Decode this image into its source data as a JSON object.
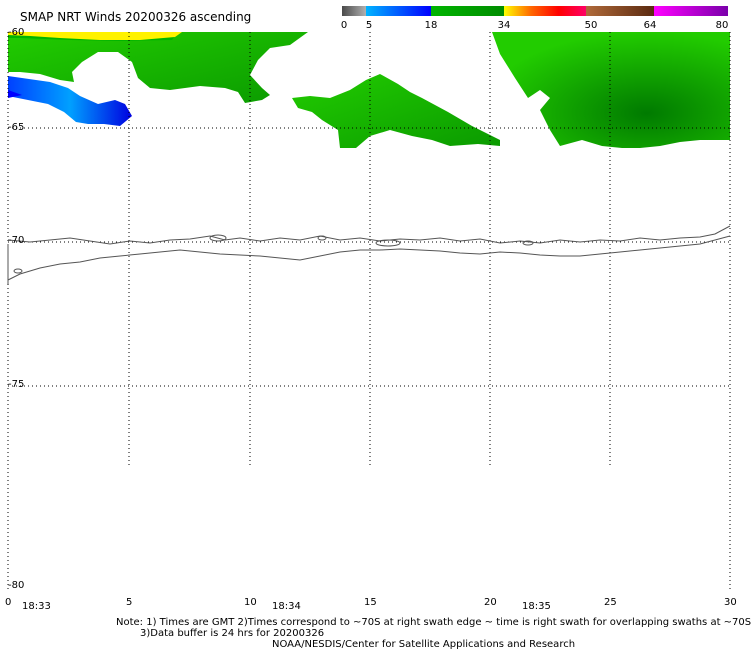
{
  "title": "SMAP NRT Winds 20200326 ascending",
  "colorbar": {
    "segments": [
      {
        "from": 0,
        "to": 5,
        "colors": [
          "#4a4a4a",
          "#b0b0b0"
        ]
      },
      {
        "from": 5,
        "to": 18,
        "colors": [
          "#00b4ff",
          "#0000ff"
        ]
      },
      {
        "from": 18,
        "to": 34,
        "colors": [
          "#00b400",
          "#008c00"
        ]
      },
      {
        "from": 34,
        "to": 50,
        "colors": [
          "#ffff00",
          "#ff6600",
          "#ff0000",
          "#ff0066"
        ]
      },
      {
        "from": 50,
        "to": 64,
        "colors": [
          "#b06a3a",
          "#5a2a10"
        ]
      },
      {
        "from": 64,
        "to": 80,
        "colors": [
          "#ff00ff",
          "#7a00aa"
        ]
      }
    ],
    "labels": [
      "0",
      "5",
      "18",
      "34",
      "50",
      "64",
      "80"
    ]
  },
  "axes": {
    "y_labels": [
      "-60",
      "-65",
      "-70",
      "-75",
      "-80"
    ],
    "x_labels": [
      "0",
      "5",
      "10",
      "15",
      "20",
      "25",
      "30"
    ],
    "time_labels": [
      "18:33",
      "18:34",
      "18:35"
    ]
  },
  "footer": {
    "line1": "Note: 1) Times are GMT 2)Times correspond to ~70S at right swath edge ~ time is right swath for overlapping swaths at ~70S",
    "line2": "3)Data buffer is 24 hrs for 20200326",
    "line3": "NOAA/NESDIS/Center for Satellite Applications and Research"
  },
  "colors": {
    "wind_green_light": "#22cc00",
    "wind_green_dark": "#008c00",
    "wind_blue_light": "#00c8ff",
    "wind_blue_dark": "#0000ff",
    "wind_yellow": "#ffff00",
    "coastline": "#555555"
  }
}
